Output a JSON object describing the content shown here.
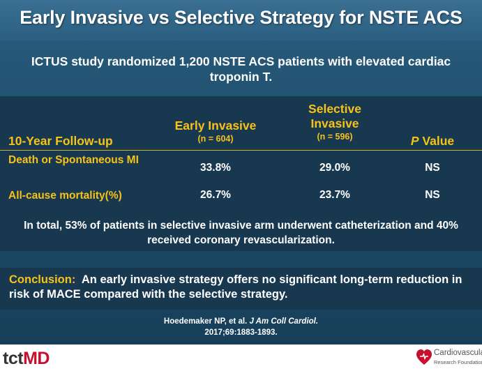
{
  "slide": {
    "title": "Early Invasive vs Selective Strategy for NSTE ACS",
    "subtitle": "ICTUS study randomized 1,200 NSTE ACS patients with elevated cardiac troponin T."
  },
  "table": {
    "header_label": "10-Year Follow-up",
    "col_early_title": "Early Invasive",
    "col_early_n": "(n = 604)",
    "col_selective_title_1": "Selective",
    "col_selective_title_2": "Invasive",
    "col_selective_n": "(n = 596)",
    "col_p_italic": "P",
    "col_p_rest": " Value",
    "rows": [
      {
        "label": "Death or Spontaneous MI",
        "early": "33.8%",
        "selective": "29.0%",
        "p": "NS"
      },
      {
        "label": "All-cause mortality(%)",
        "early": "26.7%",
        "selective": "23.7%",
        "p": "NS"
      }
    ],
    "note": "In total, 53% of patients in selective invasive arm underwent catheterization and 40% received coronary revascularization."
  },
  "conclusion": {
    "label": "Conclusion:",
    "text": "An early invasive strategy offers no significant long-term reduction in risk of MACE compared with the selective strategy."
  },
  "reference": {
    "authors": "Hoedemaker NP, et al.",
    "journal": "J Am Coll Cardiol.",
    "citation": "2017;69:1883-1893."
  },
  "footer": {
    "logo_left_a": "tct",
    "logo_left_b": "MD",
    "logo_right_name": "Cardiovascular",
    "logo_right_sub": "Research Foundation",
    "accent_color": "#c8102e"
  },
  "colors": {
    "background": "#1e4d6b",
    "header_gold": "#f7c21a",
    "table_bg": "#17384f"
  }
}
